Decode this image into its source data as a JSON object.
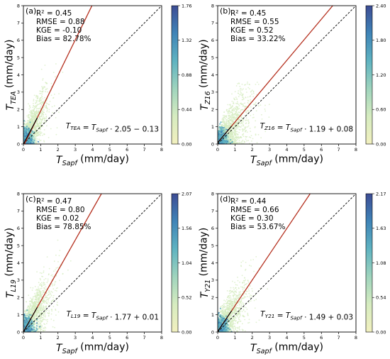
{
  "colors": {
    "fit_line": "#b5301f",
    "one_to_one": "#000000",
    "colormap": [
      "#f2f0bf",
      "#d6ecc0",
      "#9fd4bd",
      "#5fb3c1",
      "#3f84b7",
      "#3d4c94"
    ]
  },
  "chart_data": [
    {
      "type": "scatter",
      "panel_label": "(a)",
      "xlabel": "T_Sapf (mm/day)",
      "ylabel": "T_TEA (mm/day)",
      "xlim": [
        0,
        8
      ],
      "ylim": [
        0,
        8
      ],
      "xticks": [
        "0",
        "1",
        "2",
        "3",
        "4",
        "5",
        "6",
        "7",
        "8"
      ],
      "yticks": [
        "0",
        "1",
        "2",
        "3",
        "4",
        "5",
        "6",
        "7",
        "8"
      ],
      "stats": [
        "R² = 0.45",
        "RMSE = 0.88",
        "KGE  = -0.10",
        "Bias  = 82.78%"
      ],
      "equation": "T_TEA = T_Sapf · 2.05 − 0.13",
      "fit": {
        "slope": 2.05,
        "intercept": -0.13
      },
      "colorbar": {
        "min": 0.0,
        "max": 1.76,
        "ticks": [
          "0.00",
          "0.44",
          "0.88",
          "1.32",
          "1.76"
        ]
      },
      "cloud": {
        "x_center": 0.5,
        "x_extent": 2.6,
        "y_max": 5.2
      }
    },
    {
      "type": "scatter",
      "panel_label": "(b)",
      "xlabel": "T_Sapf (mm/day)",
      "ylabel": "T_Z16 (mm/day)",
      "xlim": [
        0,
        8
      ],
      "ylim": [
        0,
        8
      ],
      "xticks": [
        "0",
        "1",
        "2",
        "3",
        "4",
        "5",
        "6",
        "7",
        "8"
      ],
      "yticks": [
        "0",
        "1",
        "2",
        "3",
        "4",
        "5",
        "6",
        "7",
        "8"
      ],
      "stats": [
        "R² = 0.45",
        "RMSE = 0.55",
        "KGE  = 0.52",
        "Bias  = 33.22%"
      ],
      "equation": "T_Z16 = T_Sapf · 1.19 + 0.08",
      "fit": {
        "slope": 1.19,
        "intercept": 0.08
      },
      "colorbar": {
        "min": 0.0,
        "max": 2.4,
        "ticks": [
          "0.00",
          "0.60",
          "1.20",
          "1.80",
          "2.40"
        ]
      },
      "cloud": {
        "x_center": 0.7,
        "x_extent": 3.2,
        "y_max": 3.6
      }
    },
    {
      "type": "scatter",
      "panel_label": "(c)",
      "xlabel": "T_Sapf (mm/day)",
      "ylabel": "T_L19 (mm/day)",
      "xlim": [
        0,
        8
      ],
      "ylim": [
        0,
        8
      ],
      "xticks": [
        "0",
        "1",
        "2",
        "3",
        "4",
        "5",
        "6",
        "7",
        "8"
      ],
      "yticks": [
        "0",
        "1",
        "2",
        "3",
        "4",
        "5",
        "6",
        "7",
        "8"
      ],
      "stats": [
        "R² = 0.47",
        "RMSE = 0.80",
        "KGE  = 0.02",
        "Bias  = 78.85%"
      ],
      "equation": "T_L19 = T_Sapf · 1.77 + 0.01",
      "fit": {
        "slope": 1.77,
        "intercept": 0.01
      },
      "colorbar": {
        "min": 0.0,
        "max": 2.07,
        "ticks": [
          "0.00",
          "0.52",
          "1.04",
          "1.56",
          "2.07"
        ]
      },
      "cloud": {
        "x_center": 0.6,
        "x_extent": 2.9,
        "y_max": 5.4
      }
    },
    {
      "type": "scatter",
      "panel_label": "(d)",
      "xlabel": "T_Sapf (mm/day)",
      "ylabel": "T_Y21 (mm/day)",
      "xlim": [
        0,
        8
      ],
      "ylim": [
        0,
        8
      ],
      "xticks": [
        "0",
        "1",
        "2",
        "3",
        "4",
        "5",
        "6",
        "7",
        "8"
      ],
      "yticks": [
        "0",
        "1",
        "2",
        "3",
        "4",
        "5",
        "6",
        "7",
        "8"
      ],
      "stats": [
        "R² = 0.44",
        "RMSE = 0.66",
        "KGE  = 0.30",
        "Bias  = 53.67%"
      ],
      "equation": "T_Y21 = T_Sapf · 1.49 + 0.03",
      "fit": {
        "slope": 1.49,
        "intercept": 0.03
      },
      "colorbar": {
        "min": 0.0,
        "max": 2.17,
        "ticks": [
          "0.00",
          "0.54",
          "1.08",
          "1.63",
          "2.17"
        ]
      },
      "cloud": {
        "x_center": 0.6,
        "x_extent": 3.4,
        "y_max": 4.6
      }
    }
  ]
}
